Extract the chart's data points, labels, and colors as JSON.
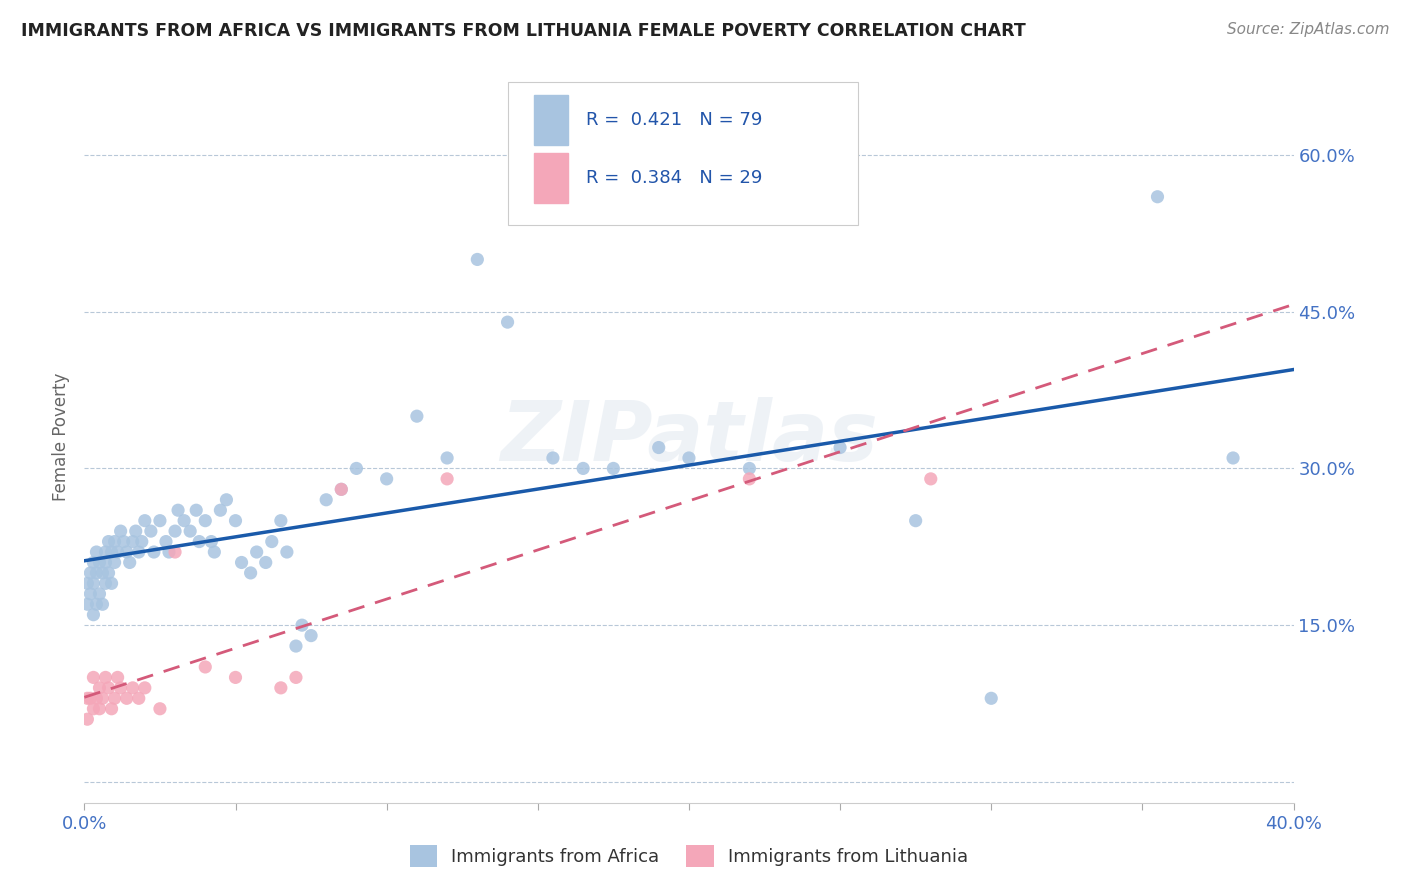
{
  "title": "IMMIGRANTS FROM AFRICA VS IMMIGRANTS FROM LITHUANIA FEMALE POVERTY CORRELATION CHART",
  "source": "Source: ZipAtlas.com",
  "ylabel": "Female Poverty",
  "xlim": [
    0.0,
    0.4
  ],
  "ylim": [
    -0.02,
    0.68
  ],
  "africa_R": 0.421,
  "africa_N": 79,
  "lithuania_R": 0.384,
  "lithuania_N": 29,
  "africa_color": "#a8c4e0",
  "africa_line_color": "#1a5aaa",
  "lithuania_color": "#f4a7b9",
  "lithuania_line_color": "#d45a7a",
  "background_color": "#ffffff",
  "africa_x": [
    0.001,
    0.001,
    0.002,
    0.002,
    0.003,
    0.003,
    0.003,
    0.004,
    0.004,
    0.004,
    0.005,
    0.005,
    0.006,
    0.006,
    0.007,
    0.007,
    0.007,
    0.008,
    0.008,
    0.009,
    0.009,
    0.01,
    0.01,
    0.011,
    0.012,
    0.013,
    0.014,
    0.015,
    0.016,
    0.017,
    0.018,
    0.019,
    0.02,
    0.022,
    0.023,
    0.025,
    0.027,
    0.028,
    0.03,
    0.031,
    0.033,
    0.035,
    0.037,
    0.038,
    0.04,
    0.042,
    0.043,
    0.045,
    0.047,
    0.05,
    0.052,
    0.055,
    0.057,
    0.06,
    0.062,
    0.065,
    0.067,
    0.07,
    0.072,
    0.075,
    0.08,
    0.085,
    0.09,
    0.1,
    0.11,
    0.12,
    0.13,
    0.14,
    0.155,
    0.165,
    0.175,
    0.19,
    0.2,
    0.22,
    0.25,
    0.275,
    0.3,
    0.355,
    0.38
  ],
  "africa_y": [
    0.19,
    0.17,
    0.2,
    0.18,
    0.16,
    0.19,
    0.21,
    0.17,
    0.2,
    0.22,
    0.18,
    0.21,
    0.17,
    0.2,
    0.19,
    0.21,
    0.22,
    0.2,
    0.23,
    0.19,
    0.22,
    0.21,
    0.23,
    0.22,
    0.24,
    0.23,
    0.22,
    0.21,
    0.23,
    0.24,
    0.22,
    0.23,
    0.25,
    0.24,
    0.22,
    0.25,
    0.23,
    0.22,
    0.24,
    0.26,
    0.25,
    0.24,
    0.26,
    0.23,
    0.25,
    0.23,
    0.22,
    0.26,
    0.27,
    0.25,
    0.21,
    0.2,
    0.22,
    0.21,
    0.23,
    0.25,
    0.22,
    0.13,
    0.15,
    0.14,
    0.27,
    0.28,
    0.3,
    0.29,
    0.35,
    0.31,
    0.5,
    0.44,
    0.31,
    0.3,
    0.3,
    0.32,
    0.31,
    0.3,
    0.32,
    0.25,
    0.08,
    0.56,
    0.31
  ],
  "lithuania_x": [
    0.001,
    0.001,
    0.002,
    0.003,
    0.003,
    0.004,
    0.005,
    0.005,
    0.006,
    0.007,
    0.008,
    0.009,
    0.01,
    0.011,
    0.012,
    0.014,
    0.016,
    0.018,
    0.02,
    0.025,
    0.03,
    0.04,
    0.05,
    0.065,
    0.07,
    0.085,
    0.12,
    0.22,
    0.28
  ],
  "lithuania_y": [
    0.08,
    0.06,
    0.08,
    0.07,
    0.1,
    0.08,
    0.07,
    0.09,
    0.08,
    0.1,
    0.09,
    0.07,
    0.08,
    0.1,
    0.09,
    0.08,
    0.09,
    0.08,
    0.09,
    0.07,
    0.22,
    0.11,
    0.1,
    0.09,
    0.1,
    0.28,
    0.29,
    0.29,
    0.29
  ],
  "ytick_vals": [
    0.0,
    0.15,
    0.3,
    0.45,
    0.6
  ],
  "ytick_labels": [
    "",
    "15.0%",
    "30.0%",
    "45.0%",
    "60.0%"
  ],
  "xtick_vals": [
    0.0,
    0.05,
    0.1,
    0.15,
    0.2,
    0.25,
    0.3,
    0.35,
    0.4
  ],
  "xtick_labels": [
    "0.0%",
    "",
    "",
    "",
    "",
    "",
    "",
    "",
    "40.0%"
  ]
}
